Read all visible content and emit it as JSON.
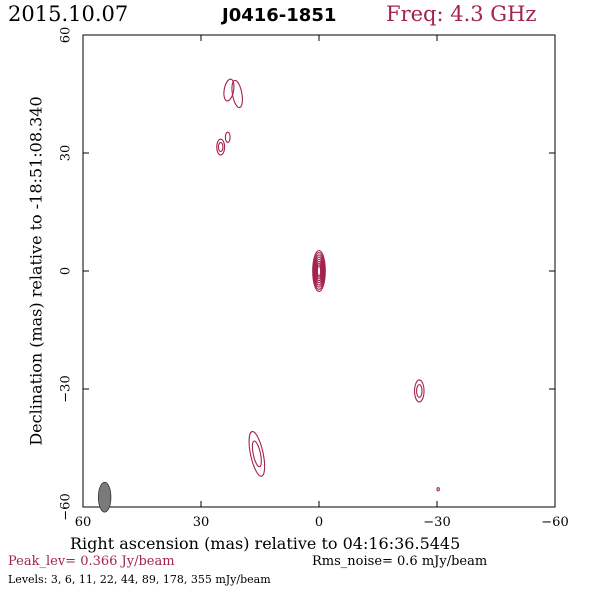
{
  "header": {
    "date": "2015.10.07",
    "source": "J0416-1851",
    "freq": "Freq: 4.3 GHz"
  },
  "footer": {
    "xlabel": "Right ascension (mas) relative to 04:16:36.5445",
    "peak": "Peak_lev=  0.366 Jy/beam",
    "rms": "Rms_noise=   0.6 mJy/beam",
    "levels": "Levels:   3,   6,  11,  22,  44,  89, 178, 355 mJy/beam"
  },
  "ylabel": "Declination (mas) relative to -18:51:08.340",
  "colors": {
    "contour": "#a3224f",
    "beam": "#7a7a7a",
    "axis": "#000000"
  },
  "chart_data": {
    "type": "contour",
    "xlabel": "Right ascension (mas) relative to 04:16:36.5445",
    "ylabel": "Declination (mas) relative to -18:51:08.340",
    "xlim": [
      60,
      -60
    ],
    "ylim": [
      -60,
      60
    ],
    "xticks": [
      60,
      30,
      0,
      -30,
      -60
    ],
    "yticks": [
      -60,
      -30,
      0,
      30,
      60
    ],
    "xtick_labels": [
      "60",
      "30",
      "0",
      "−30",
      "−60"
    ],
    "ytick_labels": [
      "−60",
      "−30",
      "0",
      "30",
      "60"
    ],
    "contour_levels_mJy": [
      3,
      6,
      11,
      22,
      44,
      89,
      178,
      355
    ],
    "peak_Jy_per_beam": 0.366,
    "rms_noise_mJy_per_beam": 0.6,
    "beam": {
      "x": 54.5,
      "y": -57.5,
      "major": 3.8,
      "minor": 1.6,
      "pa_deg": 0
    },
    "components": [
      {
        "name": "core",
        "x": 0.0,
        "y": 0.0,
        "rx": 1.6,
        "ry": 5.2,
        "rot": 0,
        "levels": 8
      },
      {
        "name": "north-blob-a",
        "x": 20.8,
        "y": 45.0,
        "rx": 1.2,
        "ry": 3.5,
        "rot": -10,
        "levels": 1
      },
      {
        "name": "north-blob-b",
        "x": 22.9,
        "y": 46.0,
        "rx": 1.2,
        "ry": 2.8,
        "rot": 10,
        "levels": 1
      },
      {
        "name": "north-blob-c",
        "x": 25.0,
        "y": 31.5,
        "rx": 1.0,
        "ry": 2.0,
        "rot": 0,
        "levels": 2
      },
      {
        "name": "north-blob-d",
        "x": 23.2,
        "y": 34.0,
        "rx": 0.6,
        "ry": 1.3,
        "rot": 0,
        "levels": 1
      },
      {
        "name": "south-jet",
        "x": 15.8,
        "y": -46.5,
        "rx": 1.6,
        "ry": 5.8,
        "rot": -12,
        "levels": 2
      },
      {
        "name": "southwest-blob",
        "x": -25.5,
        "y": -30.5,
        "rx": 1.2,
        "ry": 2.8,
        "rot": 0,
        "levels": 2
      },
      {
        "name": "noise-spot",
        "x": -30.3,
        "y": -55.5,
        "rx": 0.3,
        "ry": 0.4,
        "rot": 0,
        "levels": 1
      }
    ]
  }
}
